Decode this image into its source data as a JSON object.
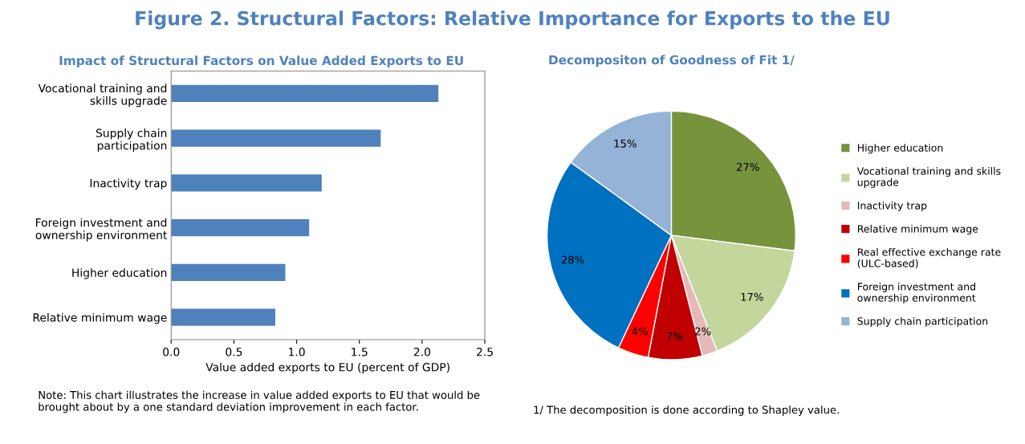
{
  "chart_data": [
    {
      "type": "bar",
      "orientation": "horizontal",
      "title": "Figure 2. Structural Factors: Relative Importance for Exports to the EU",
      "subtitle": "Impact of Structural Factors on Value Added Exports to EU",
      "categories": [
        "Vocational training and\nskills upgrade",
        "Supply chain\nparticipation",
        "Inactivity trap",
        "Foreign investment and\nownership environment",
        "Higher education",
        "Relative minimum wage"
      ],
      "values": [
        2.13,
        1.67,
        1.2,
        1.1,
        0.91,
        0.83
      ],
      "color": "#4f81bd",
      "xlim": [
        0.0,
        2.5
      ],
      "xticks": [
        {
          "value": 0,
          "label": "0.0"
        },
        0.5,
        {
          "value": 1,
          "label": "1.0"
        },
        1.5,
        {
          "value": 2,
          "label": "2.0"
        },
        2.5
      ],
      "xlabel": "Value added exports to EU (percent of GDP)",
      "grid": false,
      "annotations": [
        "Note: This chart illustrates the increase in value added exports to EU that would be\nbrought about by a one standard deviation improvement in each factor."
      ]
    },
    {
      "type": "pie",
      "title": "Decompositon of Goodness of Fit 1/",
      "categories": [
        "Higher education",
        "Vocational training and skills\nupgrade",
        "Inactivity trap",
        "Relative minimum wage",
        "Real effective exchange rate\n(ULC-based)",
        "Foreign investment and\nownership environment",
        "Supply chain participation"
      ],
      "values": [
        27,
        17,
        2,
        7,
        4,
        28,
        15
      ],
      "value_labels": [
        "27%",
        "17%",
        "2%",
        "7%",
        "4%",
        "28%",
        "15%"
      ],
      "colors": [
        "#77933c",
        "#c3d69b",
        "#e6b9b8",
        "#c00000",
        "#ff0000",
        "#0070c0",
        "#95b3d7"
      ],
      "legend": "right",
      "annotations": [
        "1/ The decomposition is done according to Shapley value."
      ]
    }
  ]
}
